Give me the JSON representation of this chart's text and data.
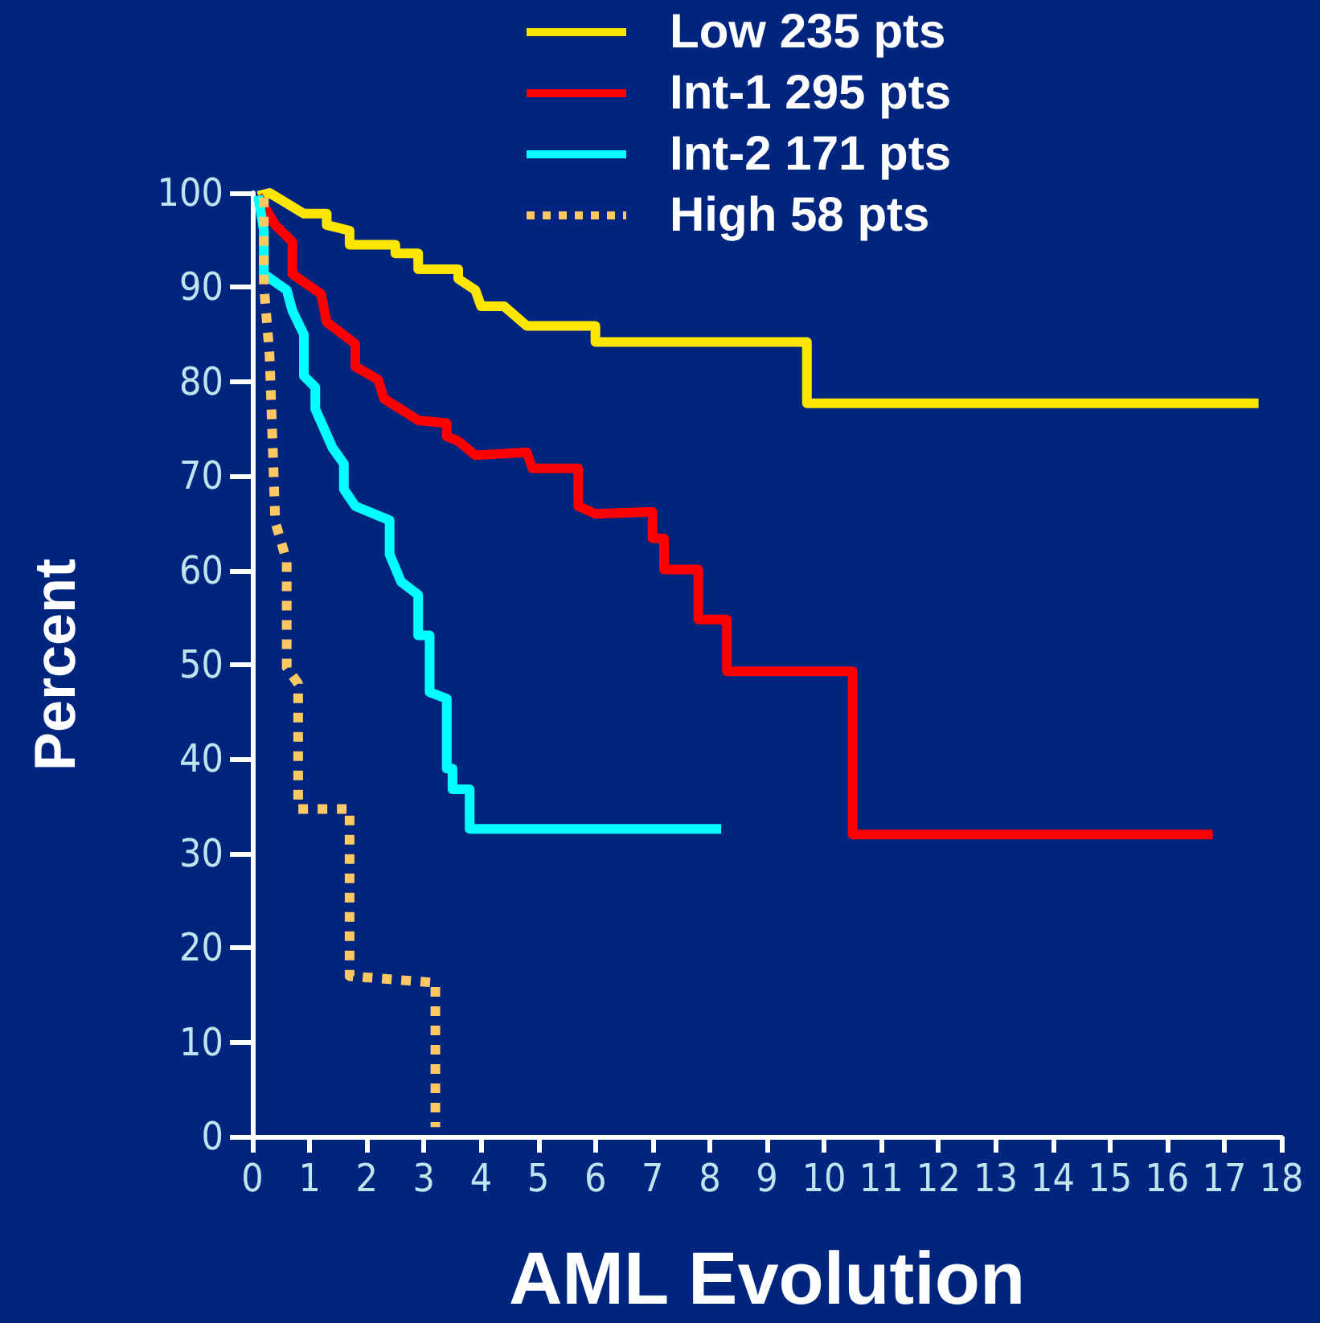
{
  "chart_data": {
    "type": "line",
    "xlabel": "AML Evolution",
    "ylabel": "Percent",
    "xlim": [
      0,
      18
    ],
    "xticks": [
      0,
      1,
      2,
      3,
      4,
      5,
      6,
      7,
      8,
      9,
      10,
      11,
      12,
      13,
      14,
      15,
      16,
      17,
      18
    ],
    "ylim": [
      0,
      100
    ],
    "yticks": [
      0,
      10,
      20,
      30,
      40,
      50,
      60,
      70,
      80,
      90,
      100
    ],
    "legend": "top",
    "marker": "none",
    "grid": false,
    "series": [
      {
        "name": "Low 235 pts",
        "color": "#ffe600",
        "line_style": "solid",
        "x": [
          0.1,
          0.3,
          0.9,
          1.3,
          1.3,
          1.7,
          1.7,
          2.5,
          2.5,
          2.9,
          2.9,
          3.6,
          3.6,
          3.9,
          4.0,
          4.4,
          4.8,
          6.0,
          6.0,
          9.7,
          9.7,
          17.6
        ],
        "values": [
          99.7,
          100,
          97.8,
          97.8,
          96.6,
          96,
          94.5,
          94.5,
          93.6,
          93.6,
          91.9,
          91.9,
          90.9,
          89.7,
          88,
          88,
          85.9,
          85.9,
          84.2,
          84.2,
          77.7,
          77.7
        ]
      },
      {
        "name": "Int-1 295 pts",
        "color": "#ff0000",
        "line_style": "solid",
        "x": [
          0.1,
          0.4,
          0.7,
          0.7,
          1.2,
          1.3,
          1.8,
          1.8,
          2.2,
          2.3,
          2.9,
          3.4,
          3.4,
          3.6,
          3.9,
          4.8,
          4.9,
          5.7,
          5.7,
          6.0,
          7.0,
          7.0,
          7.2,
          7.2,
          7.8,
          7.8,
          8.3,
          8.3,
          10.5,
          10.5,
          16.8
        ],
        "values": [
          99.7,
          96.6,
          94.8,
          91.4,
          89.3,
          86.3,
          84,
          81.6,
          80.2,
          78.2,
          75.9,
          75.6,
          74.2,
          73.7,
          72.2,
          72.5,
          70.8,
          70.8,
          66.8,
          66,
          66.2,
          63.4,
          63.4,
          60.1,
          60.1,
          54.8,
          54.8,
          49.3,
          49.3,
          32,
          32
        ]
      },
      {
        "name": "Int-2 171 pts",
        "color": "#00ffff",
        "line_style": "solid",
        "x": [
          0.1,
          0.2,
          0.2,
          0.6,
          0.7,
          0.9,
          0.9,
          1.1,
          1.1,
          1.4,
          1.6,
          1.6,
          1.8,
          2.4,
          2.4,
          2.6,
          2.9,
          2.9,
          3.1,
          3.1,
          3.4,
          3.4,
          3.5,
          3.5,
          3.8,
          3.8,
          8.2
        ],
        "values": [
          99.7,
          96,
          91.4,
          89.7,
          87.5,
          85,
          80.6,
          79.4,
          77.1,
          73,
          71.3,
          68.6,
          66.8,
          65.3,
          61.7,
          58.8,
          57.4,
          53.1,
          53.1,
          47.1,
          46.4,
          39,
          39,
          36.8,
          36.8,
          32.6,
          32.6
        ]
      },
      {
        "name": "High 58 pts",
        "color": "#ffc864",
        "line_style": "dotted",
        "x": [
          0.2,
          0.2,
          0.3,
          0.4,
          0.6,
          0.6,
          0.8,
          0.8,
          1.7,
          1.7,
          3.2,
          3.2
        ],
        "values": [
          99.5,
          90.2,
          82.8,
          65.1,
          61,
          49.7,
          48,
          34.7,
          34.7,
          17,
          16.3,
          1
        ]
      }
    ]
  }
}
